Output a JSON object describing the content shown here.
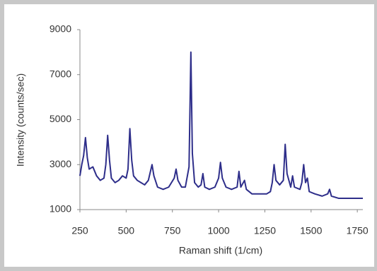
{
  "chart_data": {
    "type": "line",
    "x_label": "Raman shift (1/cm)",
    "y_label": "Intensity (counts/sec)",
    "x": [
      250,
      260,
      270,
      280,
      290,
      300,
      320,
      340,
      360,
      380,
      390,
      400,
      410,
      420,
      440,
      460,
      480,
      500,
      510,
      520,
      530,
      540,
      560,
      580,
      600,
      620,
      640,
      650,
      670,
      700,
      730,
      760,
      770,
      780,
      800,
      820,
      840,
      850,
      858,
      870,
      890,
      905,
      915,
      925,
      950,
      980,
      1000,
      1010,
      1020,
      1040,
      1070,
      1100,
      1110,
      1120,
      1140,
      1150,
      1180,
      1220,
      1260,
      1280,
      1290,
      1300,
      1310,
      1330,
      1350,
      1360,
      1370,
      1390,
      1400,
      1410,
      1440,
      1450,
      1460,
      1470,
      1480,
      1490,
      1520,
      1560,
      1590,
      1600,
      1610,
      1650,
      1700,
      1750,
      1780
    ],
    "values": [
      2500,
      3000,
      3400,
      4200,
      3300,
      2800,
      2900,
      2500,
      2300,
      2400,
      3000,
      4300,
      3200,
      2400,
      2200,
      2300,
      2500,
      2400,
      2800,
      4600,
      3200,
      2500,
      2300,
      2200,
      2100,
      2300,
      3000,
      2500,
      2000,
      1900,
      2000,
      2400,
      2800,
      2300,
      2000,
      2000,
      2900,
      8000,
      3500,
      2200,
      2000,
      2100,
      2600,
      2000,
      1900,
      2000,
      2400,
      3100,
      2400,
      2000,
      1900,
      2000,
      2700,
      2000,
      2300,
      1900,
      1700,
      1700,
      1700,
      1800,
      2200,
      3000,
      2300,
      2100,
      2300,
      3900,
      2600,
      2000,
      2500,
      2000,
      1900,
      2200,
      3000,
      2200,
      2400,
      1800,
      1700,
      1600,
      1700,
      1900,
      1600,
      1500,
      1500,
      1500,
      1500
    ],
    "color": "#2e2e8a",
    "xlim": [
      250,
      1780
    ],
    "ylim": [
      1000,
      9000
    ],
    "xticks": [
      250,
      500,
      750,
      1000,
      1250,
      1500,
      1750
    ],
    "yticks": [
      1000,
      3000,
      5000,
      7000,
      9000
    ]
  }
}
